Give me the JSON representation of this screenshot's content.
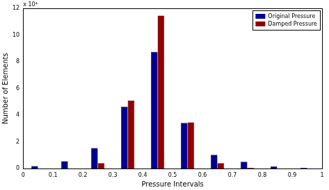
{
  "chart_data": {
    "type": "bar",
    "xlabel": "Pressure Intervals",
    "ylabel": "Number of Elements",
    "annotation": "x 10⁴",
    "x": [
      0.05,
      0.15,
      0.25,
      0.35,
      0.45,
      0.55,
      0.65,
      0.75,
      0.85,
      0.95
    ],
    "series": [
      {
        "name": "Original Pressure",
        "color": "#000090",
        "values": [
          0.2,
          0.57,
          1.55,
          4.65,
          8.75,
          3.43,
          1.05,
          0.52,
          0.17,
          0.07
        ]
      },
      {
        "name": "Damped Pressure",
        "color": "#900000",
        "values": [
          0,
          0.02,
          0.42,
          5.1,
          11.45,
          3.47,
          0.42,
          0.07,
          0.01,
          0
        ]
      }
    ],
    "xlim": [
      0,
      1
    ],
    "xticks": [
      0,
      0.1,
      0.2,
      0.3,
      0.4,
      0.5,
      0.6,
      0.7,
      0.8,
      0.9,
      1
    ],
    "ylim": [
      0,
      12
    ],
    "yticks": [
      0,
      2,
      4,
      6,
      8,
      10,
      12
    ],
    "grid": false,
    "legend": "top-right"
  }
}
